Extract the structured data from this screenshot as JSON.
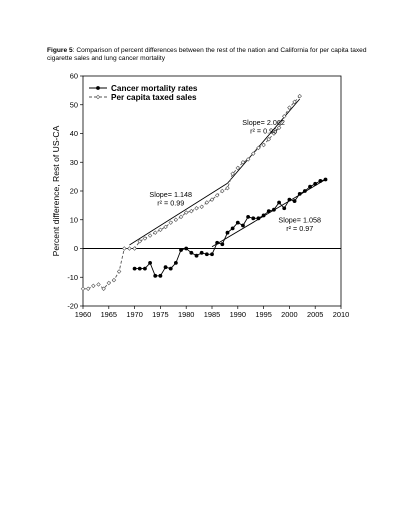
{
  "caption": {
    "label": "Figure 5",
    "text": ": Comparison of percent differences between the rest of the nation and California for per capita taxed cigarette sales and lung cancer mortality"
  },
  "chart_data": {
    "type": "line",
    "ylabel": "Percent difference, Rest of US-CA",
    "xlabel": "",
    "xlim": [
      1960,
      2010
    ],
    "ylim": [
      -20,
      60
    ],
    "xticks": [
      1960,
      1965,
      1970,
      1975,
      1980,
      1985,
      1990,
      1995,
      2000,
      2005,
      2010
    ],
    "yticks": [
      -20,
      -10,
      0,
      10,
      20,
      30,
      40,
      50,
      60
    ],
    "legend_position": "top-left",
    "series": [
      {
        "name": "Cancer mortality rates",
        "style": "solid-filled-circle",
        "x": [
          1970,
          1971,
          1972,
          1973,
          1974,
          1975,
          1976,
          1977,
          1978,
          1979,
          1980,
          1981,
          1982,
          1983,
          1984,
          1985,
          1986,
          1987,
          1988,
          1989,
          1990,
          1991,
          1992,
          1993,
          1994,
          1995,
          1996,
          1997,
          1998,
          1999,
          2000,
          2001,
          2002,
          2003,
          2004,
          2005,
          2006,
          2007
        ],
        "y": [
          -7,
          -7,
          -7,
          -5,
          -9.5,
          -9.5,
          -6.5,
          -7,
          -5,
          -0.5,
          0,
          -1.5,
          -2.5,
          -1.5,
          -2,
          -2,
          2,
          1.5,
          5.5,
          7,
          9,
          8,
          11,
          10.5,
          10.5,
          11.5,
          13,
          13.5,
          16,
          14,
          17,
          16.5,
          19,
          20,
          21.5,
          22.5,
          23.5,
          24
        ]
      },
      {
        "name": "Per capita taxed sales",
        "style": "dashed-open-diamond",
        "x": [
          1960,
          1961,
          1962,
          1963,
          1964,
          1965,
          1966,
          1967,
          1968,
          1969,
          1970,
          1971,
          1972,
          1973,
          1974,
          1975,
          1976,
          1977,
          1978,
          1979,
          1980,
          1981,
          1982,
          1983,
          1984,
          1985,
          1986,
          1987,
          1988,
          1989,
          1990,
          1991,
          1992,
          1993,
          1994,
          1995,
          1996,
          1997,
          1998,
          1999,
          2000,
          2001,
          2002
        ],
        "y": [
          -14,
          -14,
          -13,
          -12.5,
          -14,
          -12,
          -11,
          -8,
          0,
          0,
          0,
          2.5,
          3.5,
          4.5,
          5.5,
          6.5,
          7.5,
          9,
          10,
          11,
          12.5,
          13,
          14,
          14.5,
          16,
          17,
          18.5,
          20,
          21,
          26,
          28,
          30,
          31,
          33,
          35,
          36,
          38,
          40,
          42,
          46,
          49,
          51,
          53
        ]
      }
    ],
    "fits": [
      {
        "x": [
          1969,
          1988
        ],
        "y": [
          1.2,
          22.7
        ]
      },
      {
        "x": [
          1988,
          2002
        ],
        "y": [
          22.7,
          52.0
        ]
      },
      {
        "x": [
          1985,
          2007
        ],
        "y": [
          0.6,
          24.0
        ]
      }
    ],
    "annotations": [
      {
        "lines": [
          "Slope= 2.062",
          "r² = 0.98"
        ],
        "x": 1995,
        "y": 43
      },
      {
        "lines": [
          "Slope= 1.148",
          "r² = 0.99"
        ],
        "x": 1977,
        "y": 18
      },
      {
        "lines": [
          "Slope= 1.058",
          "r² = 0.97"
        ],
        "x": 2002,
        "y": 9
      }
    ]
  }
}
